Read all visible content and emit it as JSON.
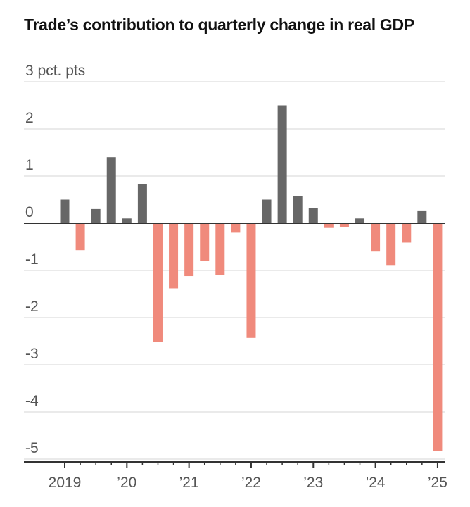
{
  "chart_data": {
    "type": "bar",
    "title": "Trade’s contribution to quarterly change in real GDP",
    "y_unit_label": "3 pct. pts",
    "ylim": [
      -5,
      3
    ],
    "y_ticks": [
      3,
      2,
      1,
      0,
      -1,
      -2,
      -3,
      -4,
      -5
    ],
    "y_tick_labels": [
      "3 pct. pts",
      "2",
      "1",
      "0",
      "-1",
      "-2",
      "-3",
      "-4",
      "-5"
    ],
    "grid": true,
    "categories": [
      "2019 Q1",
      "2019 Q2",
      "2019 Q3",
      "2019 Q4",
      "2020 Q1",
      "2020 Q2",
      "2020 Q3",
      "2020 Q4",
      "2021 Q1",
      "2021 Q2",
      "2021 Q3",
      "2021 Q4",
      "2022 Q1",
      "2022 Q2",
      "2022 Q3",
      "2022 Q4",
      "2023 Q1",
      "2023 Q2",
      "2023 Q3",
      "2023 Q4",
      "2024 Q1",
      "2024 Q2",
      "2024 Q3",
      "2024 Q4",
      "2025 Q1"
    ],
    "values": [
      0.5,
      -0.57,
      0.3,
      1.4,
      0.1,
      0.83,
      -2.52,
      -1.38,
      -1.12,
      -0.8,
      -1.1,
      -0.2,
      -2.43,
      0.5,
      2.5,
      0.57,
      0.32,
      -0.1,
      -0.08,
      0.1,
      -0.6,
      -0.9,
      -0.41,
      0.27,
      -4.83
    ],
    "x_tick_labels": [
      "2019",
      "’20",
      "’21",
      "’22",
      "’23",
      "’24",
      "’25"
    ],
    "colors": {
      "positive": "#676767",
      "negative": "#f08a7c",
      "grid": "#dddddd",
      "zero_line": "#333333",
      "axis": "#333333",
      "text": "#555555"
    }
  }
}
